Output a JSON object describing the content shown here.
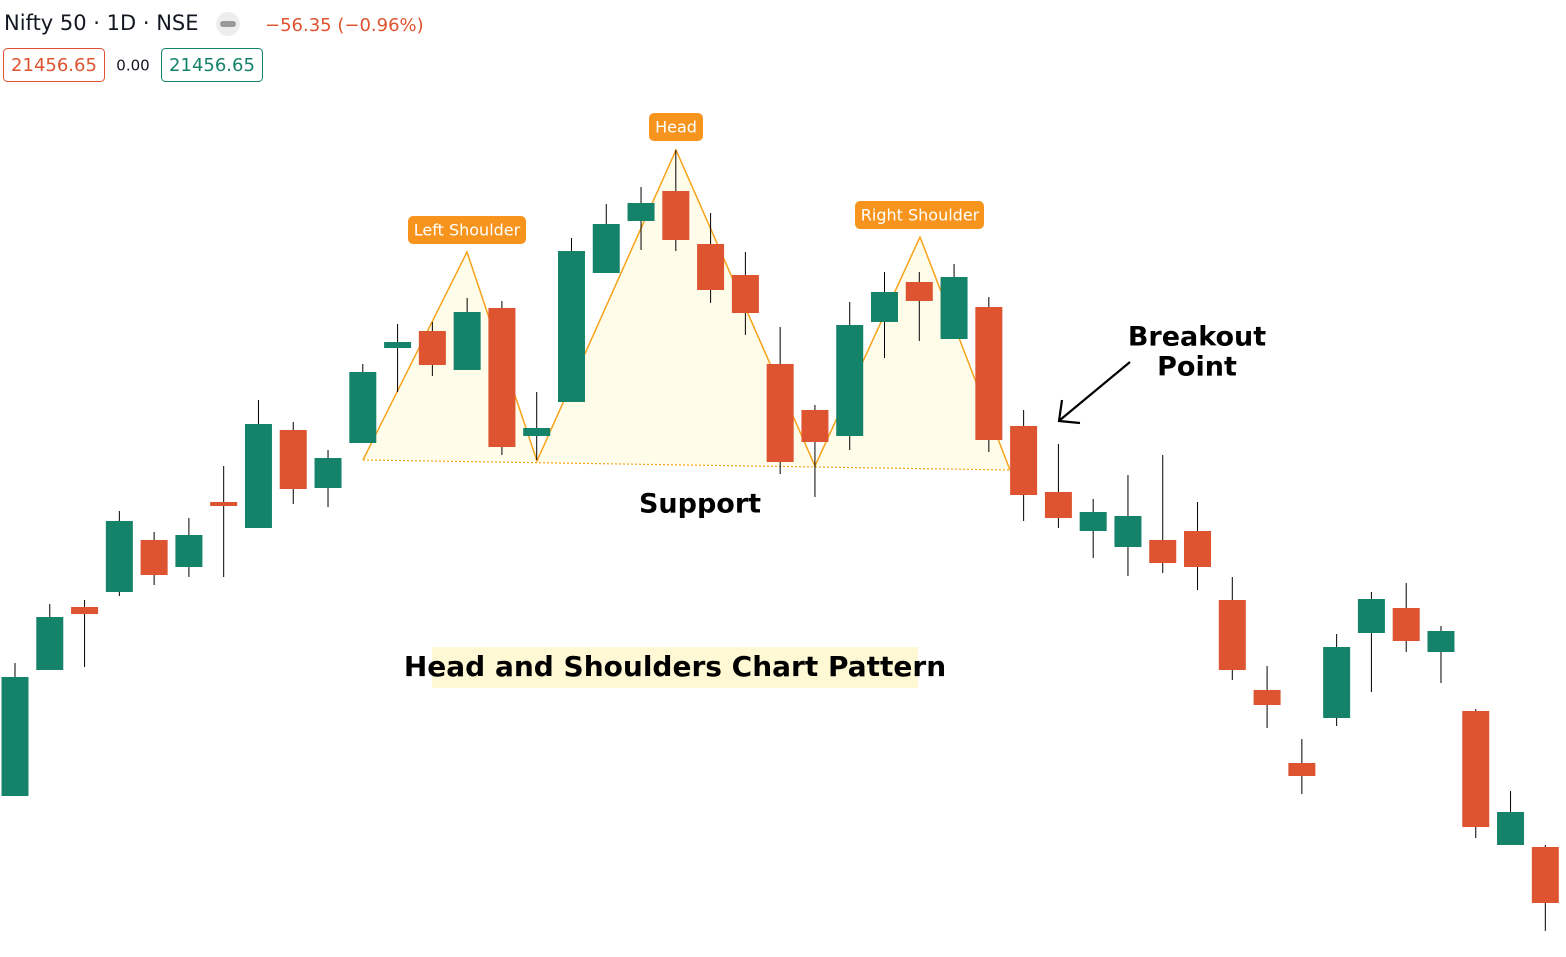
{
  "header": {
    "symbol": "Nifty 50 · 1D · NSE",
    "change": "−56.35 (−0.96%)",
    "price_left": "21456.65",
    "spread": "0.00",
    "price_right": "21456.65"
  },
  "chart_data": {
    "type": "candlestick",
    "up_color": "#14836a",
    "down_color": "#de5330",
    "ylim": [
      0,
      957
    ],
    "open": [
      161,
      287,
      350,
      365,
      417,
      390,
      455,
      429,
      527,
      469,
      514,
      609,
      626,
      587,
      649,
      521,
      555,
      684,
      736,
      766,
      713,
      682,
      593,
      547,
      521,
      635,
      675,
      618,
      650,
      531,
      465,
      426,
      410,
      417,
      426,
      357,
      267,
      194,
      239,
      324,
      349,
      305,
      246,
      112,
      110
    ],
    "high": [
      294,
      353,
      357,
      446,
      425,
      439,
      491,
      557,
      535,
      507,
      593,
      633,
      635,
      659,
      656,
      565,
      719,
      753,
      770,
      807,
      744,
      705,
      630,
      552,
      655,
      685,
      685,
      693,
      660,
      547,
      513,
      458,
      482,
      502,
      455,
      380,
      291,
      218,
      323,
      365,
      374,
      331,
      248,
      166,
      112
    ],
    "low": [
      161,
      287,
      290,
      361,
      372,
      380,
      380,
      429,
      453,
      450,
      514,
      565,
      581,
      587,
      502,
      497,
      555,
      684,
      707,
      706,
      654,
      622,
      483,
      460,
      507,
      599,
      616,
      618,
      505,
      436,
      429,
      399,
      381,
      384,
      367,
      277,
      229,
      163,
      231,
      265,
      305,
      274,
      119,
      112,
      26
    ],
    "close": [
      280,
      340,
      343,
      436,
      382,
      422,
      451,
      533,
      468,
      499,
      585,
      615,
      592,
      645,
      510,
      529,
      706,
      733,
      754,
      717,
      667,
      644,
      495,
      515,
      632,
      665,
      656,
      680,
      517,
      462,
      439,
      445,
      441,
      394,
      390,
      287,
      252,
      181,
      310,
      358,
      316,
      326,
      130,
      145,
      54
    ],
    "annotations": {
      "left_shoulder": "Left Shoulder",
      "head": "Head",
      "right_shoulder": "Right Shoulder",
      "breakout": [
        "Breakout",
        "Point"
      ],
      "support": "Support",
      "title": "Head and Shoulders Chart Pattern"
    }
  }
}
